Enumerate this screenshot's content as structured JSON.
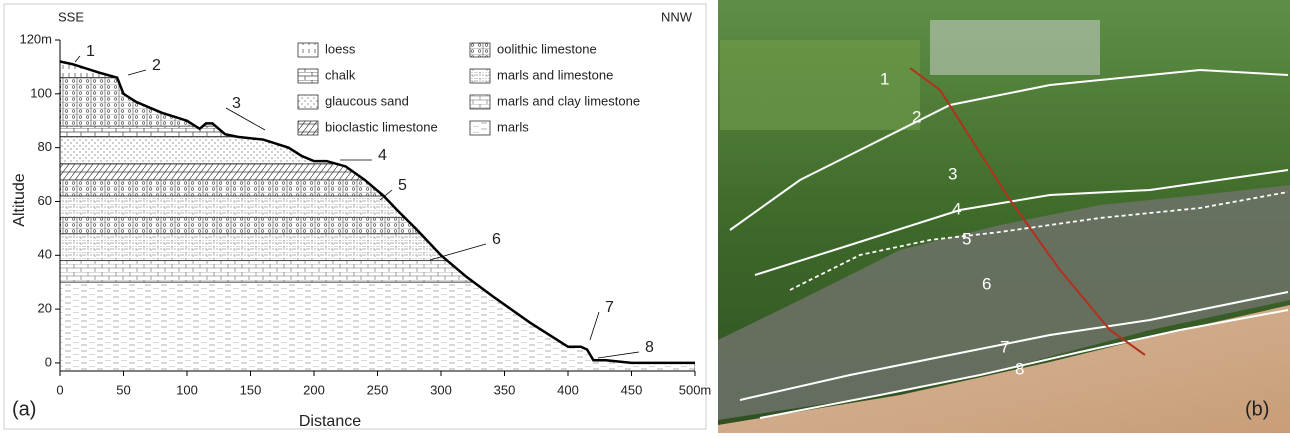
{
  "chart_data": {
    "type": "line",
    "panel_label": "(a)",
    "left_label": "SSE",
    "right_label": "NNW",
    "xlabel": "Distance",
    "ylabel": "Altitude",
    "x": [
      0,
      10,
      30,
      45,
      50,
      60,
      80,
      100,
      110,
      115,
      120,
      130,
      140,
      160,
      180,
      190,
      200,
      210,
      225,
      240,
      255,
      265,
      280,
      300,
      320,
      340,
      355,
      370,
      390,
      400,
      410,
      415,
      420,
      430,
      450,
      500
    ],
    "values": [
      112,
      111,
      108,
      106,
      100,
      97,
      93,
      90,
      87,
      89,
      89,
      85,
      84,
      83,
      80,
      77,
      75,
      75,
      73,
      68,
      62,
      57,
      50,
      40,
      32,
      25,
      20,
      15,
      9,
      6,
      6,
      5,
      1,
      1,
      0,
      0
    ],
    "color": "#000000",
    "xlim": [
      0,
      500
    ],
    "ylim": [
      -3,
      120
    ],
    "xticks": [
      0,
      50,
      100,
      150,
      200,
      250,
      300,
      350,
      400,
      450,
      {
        "value": 500,
        "label": "500m"
      }
    ],
    "yticks": [
      0,
      20,
      40,
      60,
      80,
      100,
      {
        "value": 120,
        "label": "120m"
      }
    ],
    "legend": [
      {
        "name": "loess",
        "layers": [
          [
            106,
            112
          ]
        ]
      },
      {
        "name": "chalk",
        "layers": [
          [
            84,
            88
          ]
        ]
      },
      {
        "name": "glaucous sand",
        "layers": [
          [
            74,
            84
          ]
        ]
      },
      {
        "name": "bioclastic limestone",
        "layers": [
          [
            68,
            74
          ]
        ]
      },
      {
        "name": "oolithic limestone",
        "layers": [
          [
            88,
            106
          ],
          [
            62,
            68
          ],
          [
            48,
            54
          ]
        ]
      },
      {
        "name": "marls and limestone",
        "layers": [
          [
            54,
            62
          ],
          [
            38,
            48
          ]
        ]
      },
      {
        "name": "marls and clay limestone",
        "layers": [
          [
            30,
            38
          ]
        ]
      },
      {
        "name": "marls",
        "layers": [
          [
            -3,
            30
          ]
        ]
      }
    ],
    "annotations": [
      "1",
      "2",
      "3",
      "4",
      "5",
      "6",
      "7",
      "8"
    ]
  },
  "photo": {
    "panel_label": "(b)",
    "labels": [
      "1",
      "2",
      "3",
      "4",
      "5",
      "6",
      "7",
      "8"
    ]
  }
}
